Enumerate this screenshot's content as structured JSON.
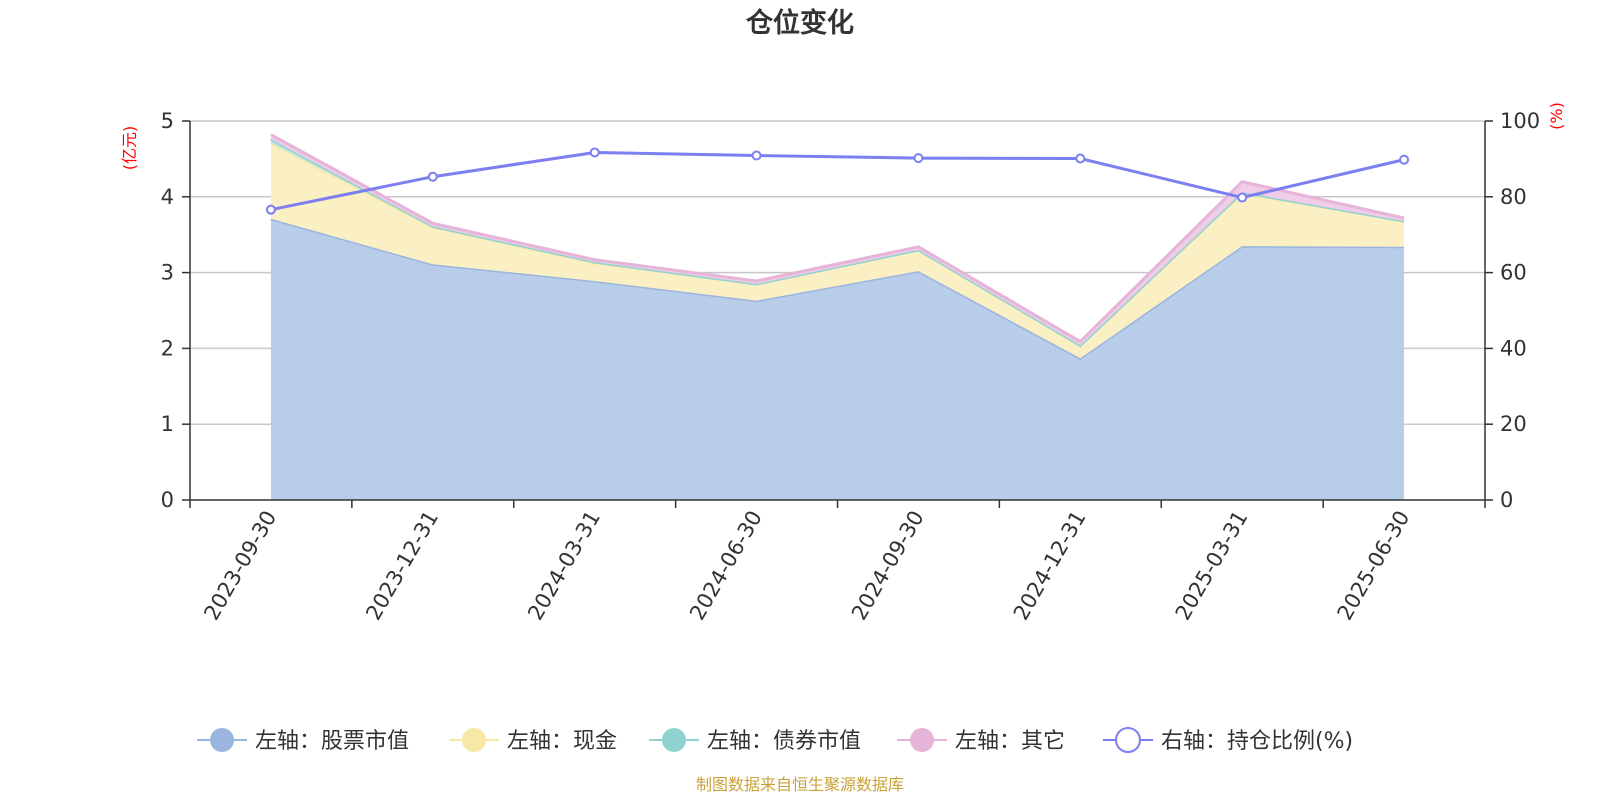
{
  "chart_data": {
    "type": "area",
    "title": "仓位变化",
    "left_unit": "(亿元)",
    "right_unit": "(%)",
    "categories": [
      "2023-09-30",
      "2023-12-31",
      "2024-03-31",
      "2024-06-30",
      "2024-09-30",
      "2024-12-31",
      "2025-03-31",
      "2025-06-30"
    ],
    "left_axis": {
      "min": 0,
      "max": 5,
      "ticks": [
        "0",
        "1",
        "2",
        "3",
        "4",
        "5"
      ]
    },
    "right_axis": {
      "min": 0,
      "max": 100,
      "ticks": [
        "0",
        "20",
        "40",
        "60",
        "80",
        "100"
      ]
    },
    "grid": true,
    "stacked": true,
    "series": [
      {
        "name": "左轴：股票市值",
        "axis": "left",
        "kind": "area",
        "color": "#9ab5df",
        "fill": "#b8cdea",
        "values": [
          3.71,
          3.11,
          2.89,
          2.63,
          3.02,
          1.87,
          3.35,
          3.34
        ]
      },
      {
        "name": "左轴：现金",
        "axis": "left",
        "kind": "area",
        "color": "#f7e8a6",
        "fill": "#fbefc4",
        "values": [
          1.0,
          0.49,
          0.24,
          0.22,
          0.28,
          0.17,
          0.7,
          0.34
        ]
      },
      {
        "name": "左轴：债券市值",
        "axis": "left",
        "kind": "area",
        "color": "#8fd3d1",
        "fill": "#bfe6e4",
        "values": [
          0.05,
          0.01,
          0.01,
          0.0,
          0.0,
          0.0,
          0.01,
          0.0
        ]
      },
      {
        "name": "左轴：其它",
        "axis": "left",
        "kind": "area",
        "color": "#e6b4d8",
        "fill": "#f0cce6",
        "values": [
          0.06,
          0.04,
          0.03,
          0.04,
          0.04,
          0.05,
          0.14,
          0.04
        ]
      },
      {
        "name": "右轴：持仓比例(%)",
        "axis": "right",
        "kind": "line",
        "color": "#7b7ff0",
        "values": [
          76.6,
          85.3,
          91.7,
          90.9,
          90.2,
          90.1,
          79.8,
          89.8
        ]
      }
    ],
    "legend_position": "bottom"
  },
  "source_note": "制图数据来自恒生聚源数据库"
}
